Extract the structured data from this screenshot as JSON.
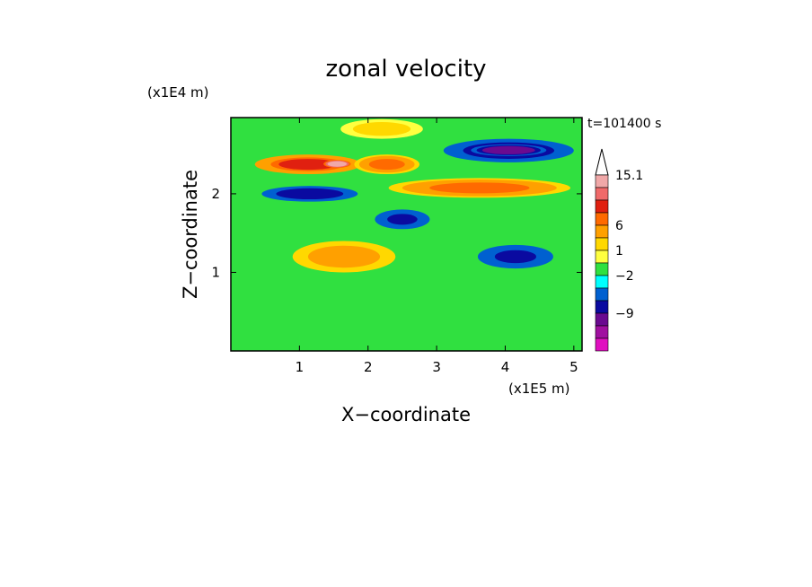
{
  "chart_data": {
    "type": "heatmap",
    "title": "zonal velocity",
    "xlabel": "X−coordinate",
    "ylabel": "Z−coordinate",
    "x_scale_label": "(x1E5 m)",
    "y_scale_label": "(x1E4 m)",
    "time_label": "t=101400 s",
    "xlim": [
      0,
      5.12
    ],
    "ylim": [
      0,
      2.97
    ],
    "x_ticks": [
      "1",
      "2",
      "3",
      "4",
      "5"
    ],
    "y_ticks": [
      "1",
      "2"
    ],
    "colorbar": {
      "labels": [
        "15.1",
        "6",
        "1",
        "−2",
        "−9"
      ],
      "levels": [
        {
          "color": "#f0a8a8"
        },
        {
          "color": "#f06a6a"
        },
        {
          "color": "#e02010"
        },
        {
          "color": "#ff6a00"
        },
        {
          "color": "#ffa000"
        },
        {
          "color": "#ffd800"
        },
        {
          "color": "#ffff40"
        },
        {
          "color": "#30e040"
        },
        {
          "color": "#00ffff"
        },
        {
          "color": "#0060d0"
        },
        {
          "color": "#0a0aa0"
        },
        {
          "color": "#6a0a90"
        },
        {
          "color": "#a010a0"
        },
        {
          "color": "#e010c0"
        }
      ]
    },
    "features": [
      {
        "x": [
          0.35,
          1.9
        ],
        "z": [
          2.25,
          2.5
        ],
        "v": 7
      },
      {
        "x": [
          1.35,
          1.75
        ],
        "z": [
          2.33,
          2.43
        ],
        "v": 14
      },
      {
        "x": [
          0.45,
          1.85
        ],
        "z": [
          1.9,
          2.1
        ],
        "v": -7
      },
      {
        "x": [
          2.3,
          4.95
        ],
        "z": [
          1.95,
          2.2
        ],
        "v": 5
      },
      {
        "x": [
          3.1,
          5.0
        ],
        "z": [
          2.4,
          2.7
        ],
        "v": -7
      },
      {
        "x": [
          3.5,
          4.6
        ],
        "z": [
          2.48,
          2.63
        ],
        "v": -10
      },
      {
        "x": [
          2.1,
          2.9
        ],
        "z": [
          1.55,
          1.8
        ],
        "v": -5
      },
      {
        "x": [
          3.6,
          4.7
        ],
        "z": [
          1.05,
          1.35
        ],
        "v": -5
      },
      {
        "x": [
          1.8,
          2.75
        ],
        "z": [
          2.25,
          2.5
        ],
        "v": 5
      },
      {
        "x": [
          0.9,
          2.4
        ],
        "z": [
          1.0,
          1.4
        ],
        "v": 4
      },
      {
        "x": [
          1.6,
          2.8
        ],
        "z": [
          2.7,
          2.95
        ],
        "v": 2
      }
    ]
  }
}
